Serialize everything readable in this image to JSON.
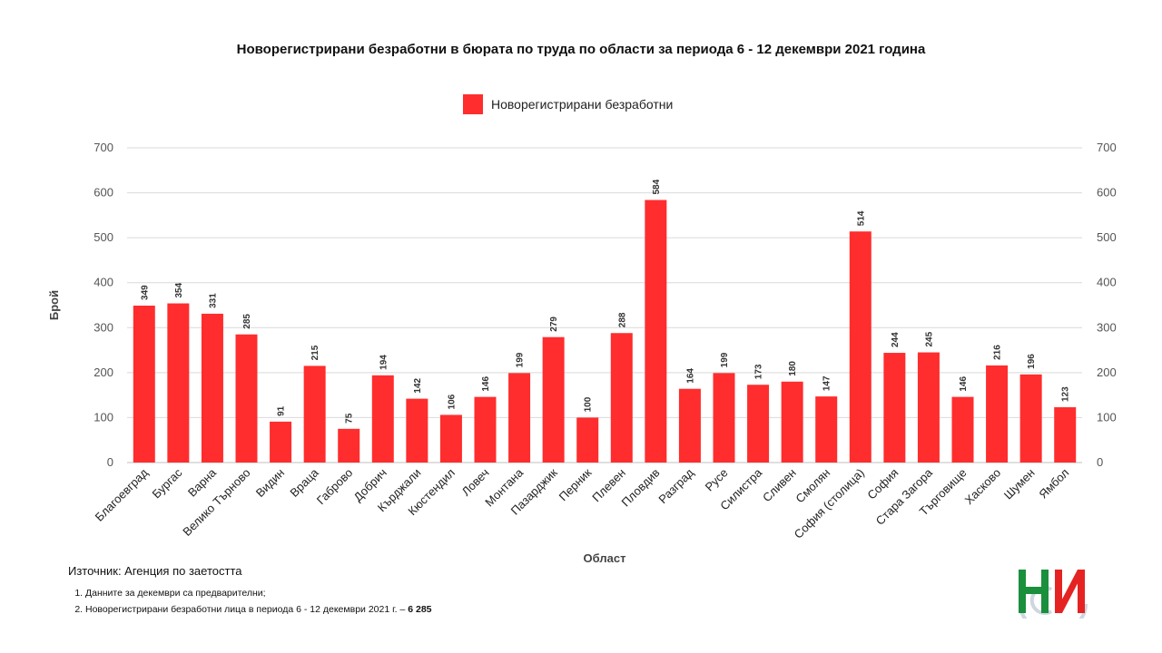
{
  "chart_data": {
    "type": "bar",
    "title": "Новорегистрирани безработни в бюрата по труда по области за периода 6 - 12 декември 2021 година",
    "xlabel": "Област",
    "ylabel": "Брой",
    "ylim": [
      0,
      700
    ],
    "yticks": [
      "0",
      "100",
      "200",
      "300",
      "400",
      "500",
      "600",
      "700"
    ],
    "grid": true,
    "secondary_y_axis": true,
    "legend": "top-center",
    "bar_color": "#ff2d2d",
    "categories": [
      "Благоевград",
      "Бургас",
      "Варна",
      "Велико Търново",
      "Видин",
      "Враца",
      "Габрово",
      "Добрич",
      "Кърджали",
      "Кюстендил",
      "Ловеч",
      "Монтана",
      "Пазарджик",
      "Перник",
      "Плевен",
      "Пловдив",
      "Разград",
      "Русе",
      "Силистра",
      "Сливен",
      "Смолян",
      "София (столица)",
      "София",
      "Стара Загора",
      "Търговище",
      "Хасково",
      "Шумен",
      "Ямбол"
    ],
    "series": [
      {
        "name": "Новорегистрирани безработни",
        "values": [
          349,
          354,
          331,
          285,
          91,
          215,
          75,
          194,
          142,
          106,
          146,
          199,
          279,
          100,
          288,
          584,
          164,
          199,
          173,
          180,
          147,
          514,
          244,
          245,
          146,
          216,
          196,
          123
        ]
      }
    ]
  },
  "source": "Източник: Агенция по заетостта",
  "notes": {
    "n1": "Данните за декември са предварителни;",
    "n2_text": "Новорегистрирани безработни лица в периода 6 - 12 декември 2021 г. – ",
    "n2_value": "6 285"
  },
  "logo": {
    "name": "nsi-logo-icon",
    "colors": [
      "#1a8f3c",
      "#e52323",
      "#cfd6df"
    ]
  }
}
